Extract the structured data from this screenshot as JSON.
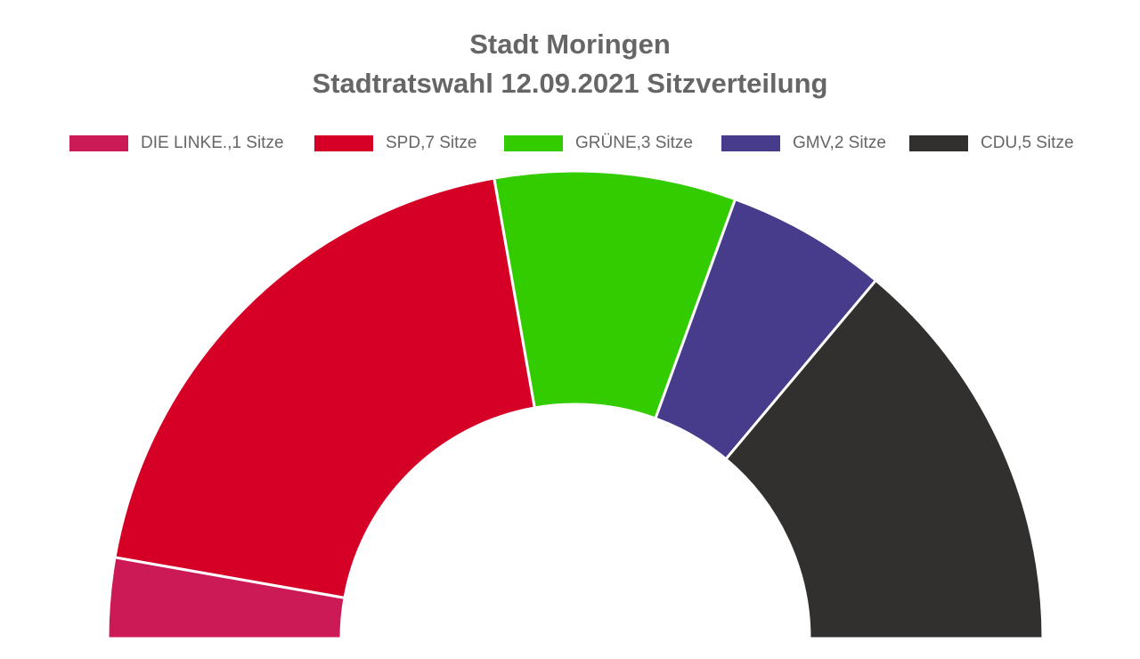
{
  "chart_data": {
    "type": "pie",
    "subtype": "semicircle-donut",
    "title": "Stadt Moringen",
    "subtitle": "Stadtratswahl 12.09.2021 Sitzverteilung",
    "legend_position": "top",
    "slices": [
      {
        "label": "DIE LINKE.,1 Sitze",
        "party": "DIE LINKE.",
        "value": 1,
        "color": "#cc1a56"
      },
      {
        "label": "SPD,7 Sitze",
        "party": "SPD",
        "value": 7,
        "color": "#d60027"
      },
      {
        "label": "GRÜNE,3 Sitze",
        "party": "GRÜNE",
        "value": 3,
        "color": "#33cc00"
      },
      {
        "label": "GMV,2 Sitze",
        "party": "GMV",
        "value": 2,
        "color": "#473c8b"
      },
      {
        "label": "CDU,5 Sitze",
        "party": "CDU",
        "value": 5,
        "color": "#32302e"
      }
    ],
    "total": 18
  }
}
